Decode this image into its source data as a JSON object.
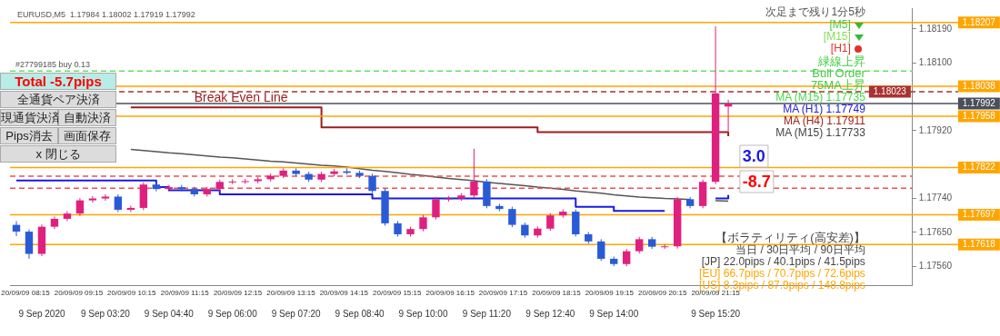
{
  "chart_data": {
    "type": "candlestick",
    "title": "EURUSD,M5  1.17984 1.18002 1.17919 1.17992",
    "categories": [
      null,
      null,
      "9 Sep 2020",
      null,
      null,
      null,
      null,
      "9 Sep 03:20",
      null,
      null,
      null,
      null,
      "9 Sep 04:40",
      null,
      null,
      null,
      null,
      "9 Sep 06:00",
      null,
      null,
      null,
      null,
      "9 Sep 07:20",
      null,
      null,
      null,
      null,
      "9 Sep 08:40",
      null,
      null,
      null,
      null,
      "9 Sep 10:00",
      null,
      null,
      null,
      null,
      "9 Sep 11:20",
      null,
      null,
      null,
      null,
      "9 Sep 12:40",
      null,
      null,
      null,
      null,
      "9 Sep 14:00",
      null,
      null,
      null,
      null,
      null,
      null,
      null,
      "9 Sep 15:20",
      null,
      null,
      null,
      null,
      null,
      null,
      null,
      null,
      null,
      null,
      null,
      null,
      null,
      null,
      null
    ],
    "ohlc": [
      [
        1.1767,
        1.1768,
        1.1764,
        1.17652
      ],
      [
        1.17652,
        1.17658,
        1.1758,
        1.17593
      ],
      [
        1.17593,
        1.17671,
        1.17587,
        1.17665
      ],
      [
        1.17665,
        1.17692,
        1.17659,
        1.17686
      ],
      [
        1.17686,
        1.17706,
        1.1768,
        1.177
      ],
      [
        1.177,
        1.17741,
        1.17694,
        1.17735
      ],
      [
        1.17735,
        1.17746,
        1.17729,
        1.1774
      ],
      [
        1.1774,
        1.17751,
        1.17734,
        1.17745
      ],
      [
        1.17745,
        1.17751,
        1.17704,
        1.1771
      ],
      [
        1.1771,
        1.17721,
        1.17704,
        1.17715
      ],
      [
        1.17715,
        1.17783,
        1.17709,
        1.17777
      ],
      [
        1.17777,
        1.17783,
        1.17759,
        1.17765
      ],
      [
        1.17765,
        1.17776,
        1.17759,
        1.1777
      ],
      [
        1.1777,
        1.17776,
        1.17759,
        1.17765
      ],
      [
        1.17765,
        1.17771,
        1.17745,
        1.17751
      ],
      [
        1.17751,
        1.17771,
        1.17745,
        1.17765
      ],
      [
        1.17765,
        1.1779,
        1.17759,
        1.17784
      ],
      [
        1.17784,
        1.17791,
        1.17778,
        1.17785
      ],
      [
        1.17785,
        1.17792,
        1.17779,
        1.17786
      ],
      [
        1.17786,
        1.17797,
        1.1778,
        1.17791
      ],
      [
        1.17791,
        1.17806,
        1.17785,
        1.178
      ],
      [
        1.178,
        1.1782,
        1.17794,
        1.17814
      ],
      [
        1.17814,
        1.1782,
        1.17799,
        1.17805
      ],
      [
        1.17805,
        1.17811,
        1.17784,
        1.1779
      ],
      [
        1.1779,
        1.17811,
        1.17784,
        1.17805
      ],
      [
        1.17805,
        1.17818,
        1.17799,
        1.17812
      ],
      [
        1.17812,
        1.1782,
        1.17804,
        1.17808
      ],
      [
        1.17808,
        1.17814,
        1.17794,
        1.178
      ],
      [
        1.178,
        1.17806,
        1.17754,
        1.1776
      ],
      [
        1.1776,
        1.17766,
        1.17668,
        1.17674
      ],
      [
        1.17674,
        1.1768,
        1.17639,
        1.17645
      ],
      [
        1.17645,
        1.17665,
        1.17639,
        1.17659
      ],
      [
        1.17659,
        1.17696,
        1.17653,
        1.1769
      ],
      [
        1.1769,
        1.17744,
        1.17684,
        1.17738
      ],
      [
        1.17738,
        1.17746,
        1.17732,
        1.1774
      ],
      [
        1.1774,
        1.17754,
        1.17734,
        1.17748
      ],
      [
        1.17748,
        1.17872,
        1.17742,
        1.17785
      ],
      [
        1.17785,
        1.17791,
        1.17714,
        1.1772
      ],
      [
        1.1772,
        1.17726,
        1.17706,
        1.17712
      ],
      [
        1.17712,
        1.17718,
        1.17664,
        1.1767
      ],
      [
        1.1767,
        1.17676,
        1.17636,
        1.17642
      ],
      [
        1.17642,
        1.17666,
        1.17636,
        1.1766
      ],
      [
        1.1766,
        1.17701,
        1.17654,
        1.17695
      ],
      [
        1.17695,
        1.17711,
        1.17689,
        1.17705
      ],
      [
        1.17705,
        1.17711,
        1.17639,
        1.17645
      ],
      [
        1.17645,
        1.17651,
        1.1762,
        1.17626
      ],
      [
        1.17626,
        1.17632,
        1.17574,
        1.1758
      ],
      [
        1.1758,
        1.17586,
        1.1756,
        1.17566
      ],
      [
        1.17566,
        1.17606,
        1.1756,
        1.176
      ],
      [
        1.176,
        1.17638,
        1.17594,
        1.17632
      ],
      [
        1.17632,
        1.17638,
        1.17606,
        1.17612
      ],
      [
        1.17612,
        1.17619,
        1.17606,
        1.17613
      ],
      [
        1.17613,
        1.17744,
        1.17607,
        1.17738
      ],
      [
        1.17738,
        1.17744,
        1.17714,
        1.1772
      ],
      [
        1.1772,
        1.1779,
        1.17714,
        1.17784
      ],
      [
        1.17784,
        1.18197,
        1.17778,
        1.18019
      ],
      [
        1.17984,
        1.18002,
        1.17919,
        1.17992
      ],
      null,
      null,
      null,
      null,
      null,
      null,
      null,
      null,
      null,
      null,
      null,
      null,
      null,
      null
    ],
    "colors": [
      "#2a5bd7",
      "#2a5bd7",
      "#e0207f",
      "#e0207f",
      "#e0207f",
      "#e0207f",
      "#e0207f",
      "#e0207f",
      "#2a5bd7",
      "#e0207f",
      "#e0207f",
      "#2a5bd7",
      "#e0207f",
      "#2a5bd7",
      "#2a5bd7",
      "#e0207f",
      "#e0207f",
      "#e0207f",
      "#e0207f",
      "#e0207f",
      "#e0207f",
      "#e0207f",
      "#2a5bd7",
      "#2a5bd7",
      "#e0207f",
      "#e0207f",
      "#2a5bd7",
      "#2a5bd7",
      "#2a5bd7",
      "#2a5bd7",
      "#2a5bd7",
      "#e0207f",
      "#e0207f",
      "#e0207f",
      "#e0207f",
      "#e0207f",
      "#e0207f",
      "#2a5bd7",
      "#2a5bd7",
      "#2a5bd7",
      "#2a5bd7",
      "#e0207f",
      "#e0207f",
      "#e0207f",
      "#2a5bd7",
      "#2a5bd7",
      "#2a5bd7",
      "#2a5bd7",
      "#e0207f",
      "#e0207f",
      "#2a5bd7",
      "#e0207f",
      "#e0207f",
      "#2a5bd7",
      "#e0207f",
      "#e0207f",
      "#e0207f",
      null,
      null,
      null,
      null,
      null,
      null,
      null,
      null,
      null,
      null,
      null,
      null,
      null,
      null
    ],
    "series": [
      {
        "name": "Break Even Line",
        "type": "step",
        "color": "#a01c1c",
        "values": [
          null,
          null,
          null,
          null,
          null,
          null,
          null,
          null,
          null,
          1.17982,
          1.17982,
          1.17982,
          1.17982,
          1.17982,
          1.17982,
          1.17982,
          1.17982,
          1.17982,
          1.17982,
          1.17982,
          1.17982,
          1.17982,
          1.17982,
          1.17982,
          1.17929,
          1.17929,
          1.17929,
          1.17929,
          1.17929,
          1.17929,
          1.17929,
          1.17929,
          1.17929,
          1.17929,
          1.17929,
          1.17929,
          1.17929,
          1.17929,
          1.17929,
          1.17929,
          1.17929,
          1.17916,
          1.17916,
          1.17916,
          1.17916,
          1.17916,
          1.17916,
          1.17916,
          1.17916,
          1.17916,
          1.17916,
          1.17916,
          1.17916,
          1.17916,
          1.17916,
          1.17916,
          1.17905,
          null,
          null,
          null,
          null,
          null,
          null,
          null,
          null,
          null,
          null,
          null,
          null,
          null,
          null
        ]
      },
      {
        "type": "line",
        "color": "#555555",
        "values": [
          null,
          null,
          null,
          null,
          null,
          null,
          null,
          null,
          null,
          1.1787,
          1.17867,
          1.17864,
          1.17861,
          1.17859,
          1.17856,
          1.17853,
          1.1785,
          1.17848,
          1.17845,
          1.17842,
          1.17839,
          1.17837,
          1.17834,
          1.17831,
          1.17828,
          1.17826,
          1.17823,
          1.17819,
          1.17815,
          1.17812,
          1.17808,
          1.17804,
          1.17801,
          1.17797,
          1.17793,
          1.1779,
          1.17787,
          1.17783,
          1.1778,
          1.17777,
          1.17774,
          1.1777,
          1.17767,
          1.17764,
          1.1776,
          1.17757,
          1.17754,
          1.1775,
          1.17747,
          1.17744,
          1.17742,
          1.1774,
          1.17739,
          1.17737,
          null,
          1.17734,
          1.17733,
          null,
          null,
          null,
          null,
          null,
          null,
          null,
          null,
          null,
          null,
          null,
          null,
          null,
          null
        ]
      },
      {
        "type": "step",
        "color": "#1a1ae0",
        "values": [
          1.17788,
          1.17788,
          1.17788,
          1.17788,
          1.17788,
          1.17788,
          1.17788,
          1.17788,
          1.17788,
          1.17788,
          1.17788,
          1.1777,
          1.17762,
          1.17762,
          1.17762,
          1.17762,
          1.17751,
          1.17751,
          1.17751,
          1.17751,
          1.17751,
          1.17751,
          1.17751,
          1.17751,
          1.17751,
          1.17751,
          1.17751,
          1.17751,
          1.1774,
          1.1774,
          1.1774,
          1.1774,
          1.1774,
          1.1774,
          1.1774,
          1.1774,
          1.1774,
          1.1774,
          1.1774,
          1.1774,
          1.1774,
          1.1774,
          1.1774,
          1.1774,
          1.17718,
          1.17718,
          1.17718,
          1.17707,
          1.17707,
          1.17707,
          1.17707,
          1.17707,
          null,
          null,
          null,
          1.1774,
          1.17749,
          null,
          null,
          null,
          null,
          null,
          null,
          null,
          null,
          null,
          null,
          null,
          null,
          null,
          null
        ]
      }
    ],
    "ylim": [
      1.1751,
      1.18245
    ],
    "yticks": [
      {
        "value": 1.1756,
        "label": "1.17560"
      },
      {
        "value": 1.1765,
        "label": "1.17650"
      },
      {
        "value": 1.1774,
        "label": "1.17740"
      },
      {
        "value": 1.1792,
        "label": "1.17920"
      },
      {
        "value": 1.181,
        "label": "1.18100"
      },
      {
        "value": 1.1819,
        "label": "1.18190"
      }
    ],
    "ref_lines": [
      {
        "axis": "y",
        "value": 1.18207,
        "label": "1.18207",
        "color": "#ffa500"
      },
      {
        "axis": "y",
        "value": 1.18078,
        "color": "#66dd66",
        "line_style": "dashed"
      },
      {
        "axis": "y",
        "value": 1.18038,
        "label": "1.18038",
        "color": "#ffa500"
      },
      {
        "axis": "y",
        "value": 1.18023,
        "label": "1.18023",
        "color": "#a83232",
        "line_style": "dashed"
      },
      {
        "axis": "y",
        "value": 1.17992,
        "label": "1.17992",
        "color": "#4a4f5a"
      },
      {
        "axis": "y",
        "value": 1.17958,
        "label": "1.17958",
        "color": "#ffa500"
      },
      {
        "axis": "y",
        "value": 1.17822,
        "label": "1.17822",
        "color": "#ffa500"
      },
      {
        "axis": "y",
        "value": 1.17799,
        "color": "#f05050",
        "line_style": "dashed"
      },
      {
        "axis": "y",
        "value": 1.17767,
        "color": "#f05050",
        "line_style": "dashed"
      },
      {
        "axis": "y",
        "value": 1.17697,
        "label": "1.17697",
        "color": "#ffa500"
      },
      {
        "axis": "y",
        "value": 1.17618,
        "label": "1.17618",
        "color": "#ffa500"
      }
    ],
    "annotations": [
      "#27799185 buy 0.13",
      "Total   -5.7pips",
      "全通貨ペア決済",
      "現通貨決済",
      "自動決済",
      "Pips消去",
      "画面保存",
      "x 閉じる",
      "次足まで残り1分5秒",
      "[M5]",
      "[M15]",
      "[H1]",
      "緑線上昇",
      "Bull Order",
      "75MA上昇",
      "MA (M15) 1.17735",
      "MA (H1) 1.17749",
      "MA (H4) 1.17911",
      "MA (M15) 1.17733",
      "3.0",
      "-8.7",
      "【ボラティリティ(高安差)】",
      "当日 / 30日平均 / 90日平均",
      "[JP] 22.0pips / 40.1pips / 41.5pips",
      "[EU] 66.7pips / 70.7pips / 72.6pips",
      "[US] 8.3pips / 87.9pips / 148.8pips",
      "20/09/09 08:15",
      "20/09/09 09:15",
      "20/09/09 10:15",
      "20/09/09 11:15",
      "20/09/09 12:15",
      "20/09/09 13:15",
      "20/09/09 14:15",
      "20/09/09 15:15",
      "20/09/09 16:15",
      "20/09/09 17:15",
      "20/09/09 18:15",
      "20/09/09 19:15",
      "20/09/09 20:15",
      "20/09/09 21:15"
    ]
  }
}
